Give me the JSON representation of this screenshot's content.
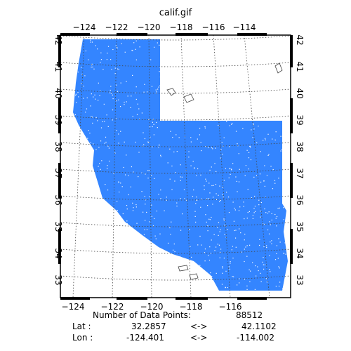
{
  "title": "calif.gif",
  "top_ticks": [
    "−124",
    "−122",
    "−120",
    "−118",
    "−116",
    "−114"
  ],
  "bottom_ticks": [
    "−124",
    "−122",
    "−120",
    "−118",
    "−116"
  ],
  "lat_ticks": [
    "42",
    "41",
    "40",
    "39",
    "38",
    "37",
    "36",
    "35",
    "34",
    "33"
  ],
  "info": {
    "points_label": "Number of Data Points:",
    "points_value": "88512",
    "lat_label": "Lat :",
    "lat_min": "32.2857",
    "arrow": "<->",
    "lat_max": "42.1102",
    "lon_label": "Lon :",
    "lon_min": "-124.401",
    "lon_max": "-114.002"
  },
  "colors": {
    "data": "#1e78ff",
    "grid": "#444444",
    "frame": "#000000"
  }
}
